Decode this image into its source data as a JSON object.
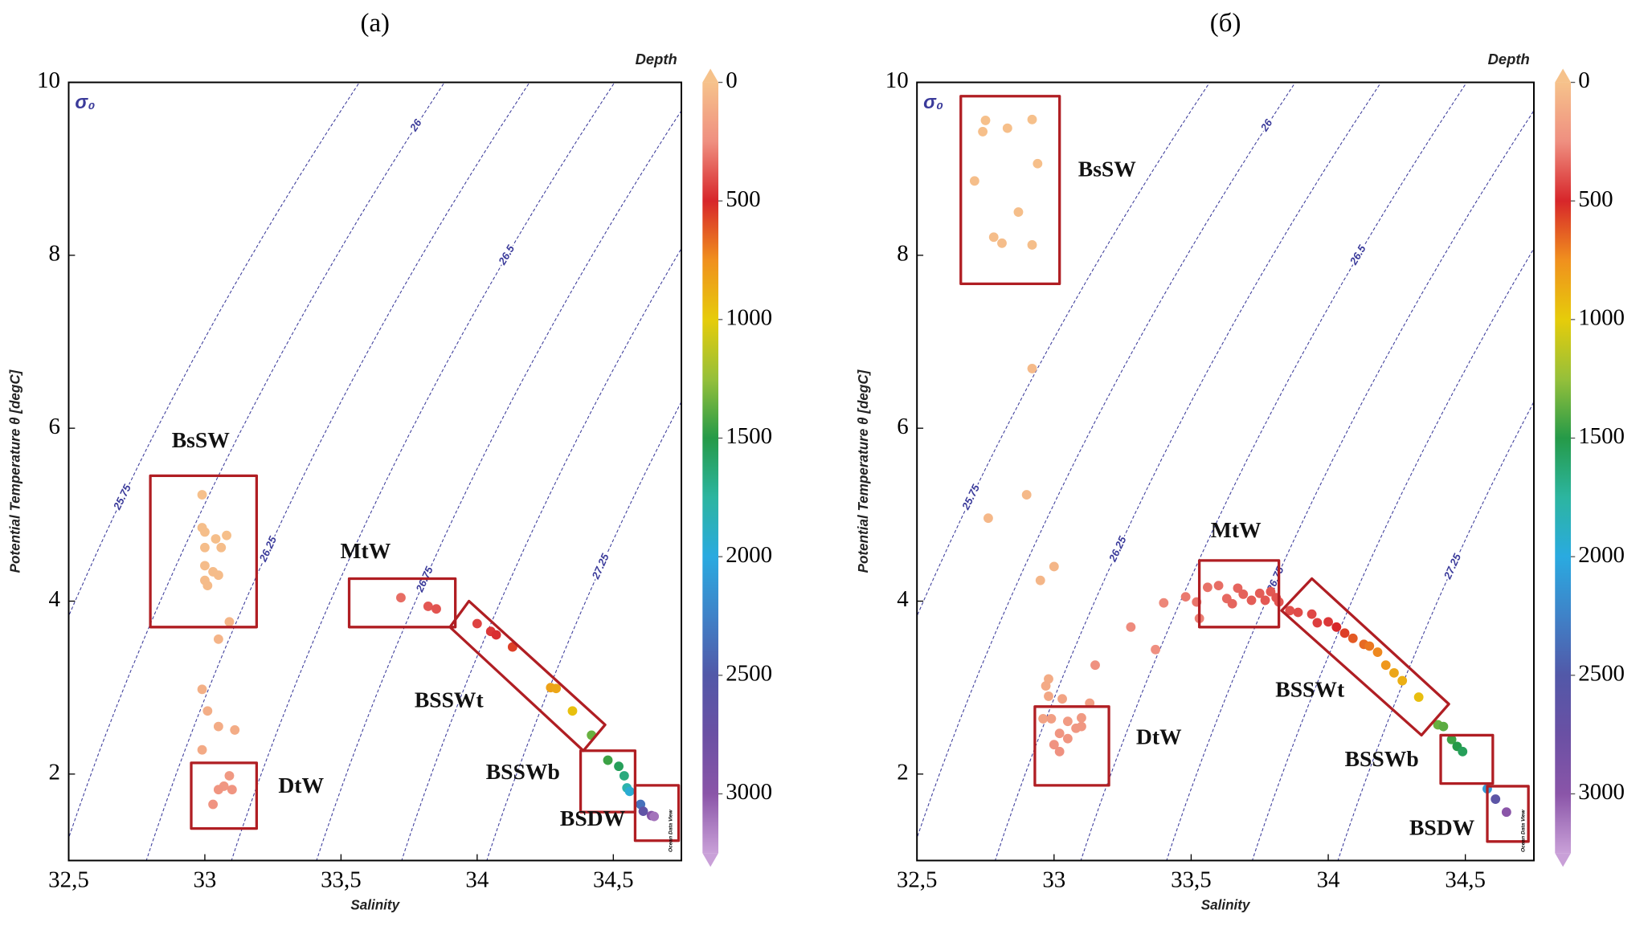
{
  "chart_data": [
    {
      "type": "scatter",
      "title": "(a)",
      "xlabel": "Salinity",
      "ylabel": "Potential Temperature θ [degC]",
      "colorbar_label": "Depth",
      "contour_label": "σ₀",
      "credit": "Ocean Data View",
      "xlim": [
        32.5,
        34.75
      ],
      "ylim": [
        1,
        10
      ],
      "xticks": [
        {
          "value": 32.5,
          "label": "32,5"
        },
        33,
        {
          "value": 33.5,
          "label": "33,5"
        },
        34,
        {
          "value": 34.5,
          "label": "34,5"
        }
      ],
      "yticks": [
        2,
        4,
        6,
        8,
        10
      ],
      "clim": [
        0,
        3250
      ],
      "cticks": [
        0,
        500,
        1000,
        1500,
        2000,
        2500,
        3000
      ],
      "colormap": [
        "#f6c28b",
        "#ef8f80",
        "#d7262a",
        "#f0901e",
        "#e6cc0a",
        "#96c03a",
        "#259a48",
        "#2cb5a0",
        "#2aaae0",
        "#3f82c8",
        "#5258a8",
        "#6a50a4",
        "#8a55a8",
        "#c9a0d8"
      ],
      "isopycnals": [
        {
          "value": 25.75,
          "label": "25.75"
        },
        26,
        {
          "value": 26.25,
          "label": "26.25"
        },
        {
          "value": 26.5,
          "label": "26.5"
        },
        {
          "value": 26.75,
          "label": "26.75"
        },
        27,
        {
          "value": 27.25,
          "label": "27.25"
        }
      ],
      "points": {
        "x": [
          32.99,
          32.99,
          33.0,
          33.0,
          33.04,
          33.08,
          33.06,
          33.0,
          33.03,
          33.0,
          33.05,
          33.01,
          33.09,
          33.05,
          32.99,
          33.01,
          33.05,
          33.11,
          32.99,
          33.09,
          33.07,
          33.05,
          33.03,
          33.1,
          33.72,
          33.82,
          33.85,
          34.0,
          34.05,
          34.07,
          34.13,
          34.27,
          34.29,
          34.35,
          34.42,
          34.48,
          34.52,
          34.54,
          34.55,
          34.56,
          34.6,
          34.61,
          34.64,
          34.65
        ],
        "y": [
          5.23,
          4.85,
          4.8,
          4.62,
          4.72,
          4.76,
          4.62,
          4.41,
          4.34,
          4.24,
          4.3,
          4.18,
          3.76,
          3.56,
          2.98,
          2.73,
          2.55,
          2.51,
          2.28,
          1.98,
          1.86,
          1.82,
          1.65,
          1.82,
          4.04,
          3.94,
          3.91,
          3.74,
          3.65,
          3.61,
          3.47,
          3.0,
          2.99,
          2.73,
          2.45,
          2.16,
          2.09,
          1.98,
          1.84,
          1.8,
          1.65,
          1.57,
          1.52,
          1.51
        ],
        "depth": [
          10,
          20,
          20,
          25,
          20,
          15,
          25,
          30,
          30,
          35,
          30,
          35,
          60,
          70,
          90,
          100,
          110,
          110,
          120,
          200,
          210,
          220,
          230,
          220,
          330,
          380,
          390,
          430,
          460,
          480,
          560,
          820,
          840,
          950,
          1350,
          1450,
          1550,
          1650,
          1800,
          1950,
          2350,
          2650,
          2950,
          3100
        ]
      },
      "regions": [
        {
          "label": "BsSW",
          "salinity": [
            32.8,
            33.19,
            33.19,
            32.8
          ],
          "temperature": [
            3.7,
            3.7,
            5.45,
            5.45
          ]
        },
        {
          "label": "DtW",
          "salinity": [
            32.95,
            33.19,
            33.19,
            32.95
          ],
          "temperature": [
            1.37,
            1.37,
            2.13,
            2.13
          ]
        },
        {
          "label": "MtW",
          "salinity": [
            33.53,
            33.92,
            33.92,
            33.53
          ],
          "temperature": [
            3.7,
            3.7,
            4.26,
            4.26
          ]
        },
        {
          "label": "BSSWt",
          "salinity": [
            33.97,
            34.47,
            34.39,
            33.9
          ],
          "temperature": [
            4.0,
            2.57,
            2.27,
            3.7
          ]
        },
        {
          "label": "BSSWb",
          "salinity": [
            34.38,
            34.58,
            34.58,
            34.38
          ],
          "temperature": [
            1.56,
            1.56,
            2.27,
            2.27
          ]
        },
        {
          "label": "BSDW",
          "salinity": [
            34.58,
            34.74,
            34.74,
            34.58
          ],
          "temperature": [
            1.23,
            1.23,
            1.87,
            1.87
          ]
        }
      ]
    },
    {
      "type": "scatter",
      "title": "(б)",
      "xlabel": "Salinity",
      "ylabel": "Potential Temperature θ [degC]",
      "colorbar_label": "Depth",
      "contour_label": "σ₀",
      "credit": "Ocean Data View",
      "xlim": [
        32.5,
        34.75
      ],
      "ylim": [
        1,
        10
      ],
      "xticks": [
        {
          "value": 32.5,
          "label": "32,5"
        },
        33,
        {
          "value": 33.5,
          "label": "33,5"
        },
        34,
        {
          "value": 34.5,
          "label": "34,5"
        }
      ],
      "yticks": [
        2,
        4,
        6,
        8,
        10
      ],
      "clim": [
        0,
        3250
      ],
      "cticks": [
        0,
        500,
        1000,
        1500,
        2000,
        2500,
        3000
      ],
      "colormap": [
        "#f6c28b",
        "#ef8f80",
        "#d7262a",
        "#f0901e",
        "#e6cc0a",
        "#96c03a",
        "#259a48",
        "#2cb5a0",
        "#2aaae0",
        "#3f82c8",
        "#5258a8",
        "#6a50a4",
        "#8a55a8",
        "#c9a0d8"
      ],
      "isopycnals": [
        {
          "value": 25.75,
          "label": "25.75"
        },
        26,
        {
          "value": 26.25,
          "label": "26.25"
        },
        {
          "value": 26.5,
          "label": "26.5"
        },
        {
          "value": 26.75,
          "label": "26.75"
        },
        27,
        {
          "value": 27.25,
          "label": "27.25"
        }
      ],
      "points": {
        "x": [
          32.75,
          32.74,
          32.92,
          32.83,
          32.71,
          32.94,
          32.87,
          32.78,
          32.81,
          32.92,
          32.92,
          32.9,
          32.76,
          33.0,
          32.95,
          32.98,
          32.97,
          32.98,
          33.03,
          33.13,
          32.96,
          32.99,
          33.05,
          33.1,
          33.08,
          33.02,
          33.0,
          33.02,
          33.05,
          33.1,
          33.15,
          33.28,
          33.37,
          33.4,
          33.48,
          33.52,
          33.53,
          33.56,
          33.6,
          33.63,
          33.65,
          33.67,
          33.69,
          33.72,
          33.75,
          33.77,
          33.79,
          33.81,
          33.82,
          33.86,
          33.89,
          33.94,
          33.96,
          34.0,
          34.03,
          34.06,
          34.09,
          34.13,
          34.15,
          34.18,
          34.21,
          34.24,
          34.27,
          34.33,
          34.4,
          34.42,
          34.45,
          34.47,
          34.49,
          34.58,
          34.61,
          34.65
        ],
        "y": [
          9.56,
          9.43,
          9.57,
          9.47,
          8.86,
          9.06,
          8.5,
          8.21,
          8.14,
          8.12,
          6.69,
          5.23,
          4.96,
          4.4,
          4.24,
          3.1,
          3.02,
          2.9,
          2.87,
          2.82,
          2.64,
          2.64,
          2.61,
          2.65,
          2.53,
          2.47,
          2.34,
          2.26,
          2.41,
          2.55,
          3.26,
          3.7,
          3.44,
          3.98,
          4.05,
          3.99,
          3.8,
          4.16,
          4.18,
          4.03,
          3.97,
          4.15,
          4.08,
          4.01,
          4.09,
          4.01,
          4.11,
          4.04,
          3.99,
          3.89,
          3.87,
          3.85,
          3.75,
          3.76,
          3.7,
          3.63,
          3.57,
          3.5,
          3.48,
          3.41,
          3.26,
          3.17,
          3.08,
          2.89,
          2.57,
          2.55,
          2.4,
          2.32,
          2.26,
          1.83,
          1.71,
          1.56
        ],
        "depth": [
          10,
          15,
          10,
          15,
          20,
          15,
          20,
          25,
          25,
          20,
          40,
          45,
          50,
          60,
          60,
          110,
          120,
          130,
          150,
          170,
          150,
          170,
          190,
          200,
          210,
          220,
          230,
          240,
          220,
          210,
          240,
          260,
          250,
          270,
          300,
          310,
          290,
          320,
          330,
          340,
          350,
          350,
          360,
          370,
          370,
          380,
          380,
          390,
          390,
          400,
          410,
          420,
          440,
          460,
          500,
          560,
          620,
          660,
          690,
          730,
          780,
          840,
          880,
          940,
          1350,
          1380,
          1450,
          1500,
          1550,
          2100,
          2600,
          3000
        ]
      },
      "regions": [
        {
          "label": "BsSW",
          "salinity": [
            32.66,
            33.02,
            33.02,
            32.66
          ],
          "temperature": [
            7.67,
            7.67,
            9.84,
            9.84
          ]
        },
        {
          "label": "DtW",
          "salinity": [
            32.93,
            33.2,
            33.2,
            32.93
          ],
          "temperature": [
            1.87,
            1.87,
            2.78,
            2.78
          ]
        },
        {
          "label": "MtW",
          "salinity": [
            33.53,
            33.82,
            33.82,
            33.53
          ],
          "temperature": [
            3.7,
            3.7,
            4.47,
            4.47
          ]
        },
        {
          "label": "BSSWt",
          "salinity": [
            33.94,
            34.44,
            34.34,
            33.83
          ],
          "temperature": [
            4.26,
            2.81,
            2.45,
            3.89
          ]
        },
        {
          "label": "BSSWb",
          "salinity": [
            34.41,
            34.6,
            34.6,
            34.41
          ],
          "temperature": [
            1.89,
            1.89,
            2.45,
            2.45
          ]
        },
        {
          "label": "BSDW",
          "salinity": [
            34.58,
            34.73,
            34.73,
            34.58
          ],
          "temperature": [
            1.22,
            1.22,
            1.86,
            1.86
          ]
        }
      ]
    }
  ]
}
